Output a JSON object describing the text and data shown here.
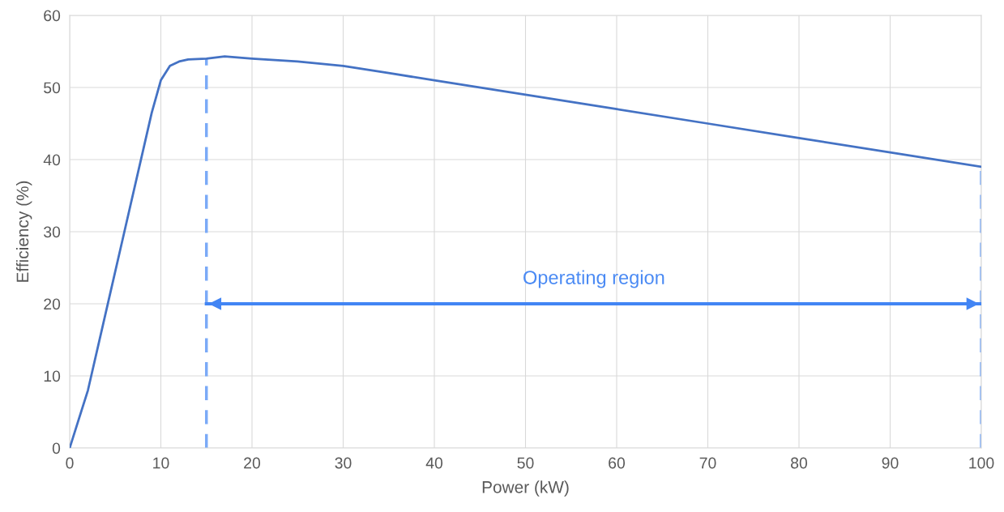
{
  "chart_data": {
    "type": "line",
    "xlabel": "Power (kW)",
    "ylabel": "Efficiency (%)",
    "x": [
      0,
      2,
      4,
      6,
      8,
      9,
      10,
      11,
      12,
      13,
      15,
      17,
      20,
      25,
      30,
      35,
      40,
      50,
      60,
      70,
      80,
      90,
      100
    ],
    "series": [
      {
        "color": "#4472c4",
        "values": [
          0,
          8,
          19,
          30,
          41,
          46.5,
          51,
          53,
          53.6,
          53.9,
          54,
          54.3,
          54,
          53.6,
          53,
          52,
          51,
          49,
          47,
          45,
          43,
          41,
          39
        ]
      },
      {
        "color": "#4285f4",
        "x": [
          15,
          100
        ],
        "values": [
          20,
          20
        ]
      }
    ],
    "xlim": [
      0,
      100
    ],
    "ylim": [
      0,
      60
    ],
    "xticks": [
      0,
      10,
      20,
      30,
      40,
      50,
      60,
      70,
      80,
      90,
      100
    ],
    "yticks": [
      0,
      10,
      20,
      30,
      40,
      50,
      60
    ],
    "grid": true,
    "marker": "none",
    "line_style": "solid",
    "ref_lines": [
      {
        "axis": "x",
        "value": 15,
        "color": "#7baaf7",
        "line_style": "dashed"
      },
      {
        "axis": "x",
        "value": 100,
        "color": "#7baaf7",
        "line_style": "dashed"
      }
    ],
    "annotations": [
      "Operating region"
    ]
  }
}
